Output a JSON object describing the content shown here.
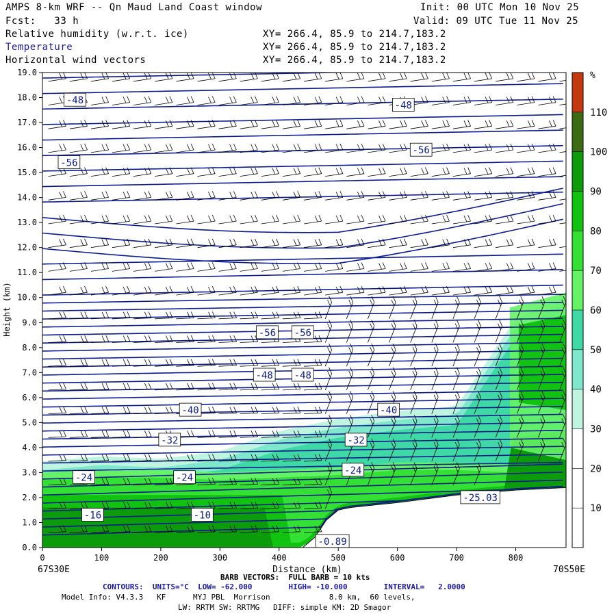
{
  "header": {
    "title_left": "AMPS 8-km WRF -- Qn Maud Land Coast window",
    "fcst": "Fcst:   33 h",
    "init": "Init: 00 UTC Mon 10 Nov 25",
    "valid": "Valid: 09 UTC Tue 11 Nov 25",
    "field1": "Relative humidity (w.r.t. ice)",
    "field2": "Temperature",
    "field3": "Horizontal wind vectors",
    "xy1": "XY= 266.4, 85.9 to 214.7,183.2",
    "xy2": "XY= 266.4, 85.9 to 214.7,183.2",
    "xy3": "XY= 266.4, 85.9 to 214.7,183.2"
  },
  "chart_data": {
    "type": "cross-section",
    "ylabel": "Height (km)",
    "xlabel": "Distance (km)",
    "x_start_label": "67S30E",
    "x_end_label": "70S50E",
    "xlim": [
      0,
      885
    ],
    "ylim": [
      0,
      19
    ],
    "x_ticks": [
      0,
      100,
      200,
      300,
      400,
      500,
      600,
      700,
      800
    ],
    "x_tick_labels": [
      "0",
      "100",
      "200",
      "300",
      "400",
      "500",
      "600",
      "700",
      "800"
    ],
    "y_ticks": [
      0,
      1,
      2,
      3,
      4,
      5,
      6,
      7,
      8,
      9,
      10,
      11,
      12,
      13,
      14,
      15,
      16,
      17,
      18,
      19
    ],
    "y_tick_labels": [
      "0.0",
      "1.0",
      "2.0",
      "3.0",
      "4.0",
      "5.0",
      "6.0",
      "7.0",
      "8.0",
      "9.0",
      "10.0",
      "11.0",
      "12.0",
      "13.0",
      "14.0",
      "15.0",
      "16.0",
      "17.0",
      "18.0",
      "19.0"
    ],
    "colorbar": {
      "unit": "%",
      "levels": [
        10,
        20,
        30,
        40,
        50,
        60,
        70,
        80,
        90,
        100,
        110
      ],
      "labels": [
        "10",
        "20",
        "30",
        "40",
        "50",
        "60",
        "70",
        "80",
        "90",
        "100",
        "110"
      ],
      "colors": [
        "#ffffff",
        "#ffffff",
        "#ffffff",
        "#bff5e0",
        "#7fe8cc",
        "#3fd9a6",
        "#66f266",
        "#33e033",
        "#11c211",
        "#0b9b0b",
        "#3d6b14",
        "#c33a10"
      ]
    },
    "relative_humidity": {
      "moist_layer_top_km": [
        [
          0,
          3.3
        ],
        [
          100,
          3.5
        ],
        [
          200,
          3.4
        ],
        [
          300,
          3.7
        ],
        [
          400,
          4.5
        ],
        [
          500,
          5.0
        ],
        [
          600,
          5.3
        ],
        [
          700,
          5.5
        ],
        [
          800,
          9.0
        ],
        [
          885,
          10.0
        ]
      ],
      "core_top_km": [
        [
          0,
          2.9
        ],
        [
          100,
          3.0
        ],
        [
          200,
          3.0
        ],
        [
          300,
          2.9
        ],
        [
          400,
          3.0
        ],
        [
          500,
          3.1
        ],
        [
          600,
          3.3
        ],
        [
          700,
          3.3
        ],
        [
          800,
          3.2
        ],
        [
          885,
          3.5
        ]
      ]
    },
    "terrain_km": [
      [
        0,
        0
      ],
      [
        440,
        0
      ],
      [
        460,
        0.4
      ],
      [
        480,
        1.1
      ],
      [
        500,
        1.5
      ],
      [
        520,
        1.6
      ],
      [
        560,
        1.7
      ],
      [
        600,
        1.8
      ],
      [
        700,
        2.1
      ],
      [
        800,
        2.3
      ],
      [
        885,
        2.4
      ]
    ],
    "temperature_labels": [
      {
        "text": "-48",
        "x": 55,
        "y": 17.9
      },
      {
        "text": "-48",
        "x": 610,
        "y": 17.7
      },
      {
        "text": "-56",
        "x": 45,
        "y": 15.4
      },
      {
        "text": "-56",
        "x": 640,
        "y": 15.9
      },
      {
        "text": "-56",
        "x": 380,
        "y": 8.6
      },
      {
        "text": "-56",
        "x": 440,
        "y": 8.6
      },
      {
        "text": "-48",
        "x": 375,
        "y": 6.9
      },
      {
        "text": "-48",
        "x": 440,
        "y": 6.9
      },
      {
        "text": "-40",
        "x": 250,
        "y": 5.5
      },
      {
        "text": "-40",
        "x": 585,
        "y": 5.5
      },
      {
        "text": "-32",
        "x": 215,
        "y": 4.3
      },
      {
        "text": "-32",
        "x": 530,
        "y": 4.3
      },
      {
        "text": "-24",
        "x": 70,
        "y": 2.8
      },
      {
        "text": "-24",
        "x": 240,
        "y": 2.8
      },
      {
        "text": "-24",
        "x": 525,
        "y": 3.1
      },
      {
        "text": "-16",
        "x": 85,
        "y": 1.3
      },
      {
        "text": "-10",
        "x": 270,
        "y": 1.3
      },
      {
        "text": "-25.03",
        "x": 740,
        "y": 2.0
      },
      {
        "text": "-0.89",
        "x": 490,
        "y": 0.25
      }
    ]
  },
  "footer": {
    "barb": "BARB VECTORS:  FULL BARB = 10 kts",
    "contours": "CONTOURS:  UNITS=°C  LOW= -62.000        HIGH= -10.000        INTERVAL=   2.0000",
    "model": "Model Info: V4.3.3   KF      MYJ PBL  Morrison             8.0 km,  60 levels,",
    "physics": "LW: RRTM SW: RRTMG   DIFF: simple KM: 2D Smagor"
  }
}
